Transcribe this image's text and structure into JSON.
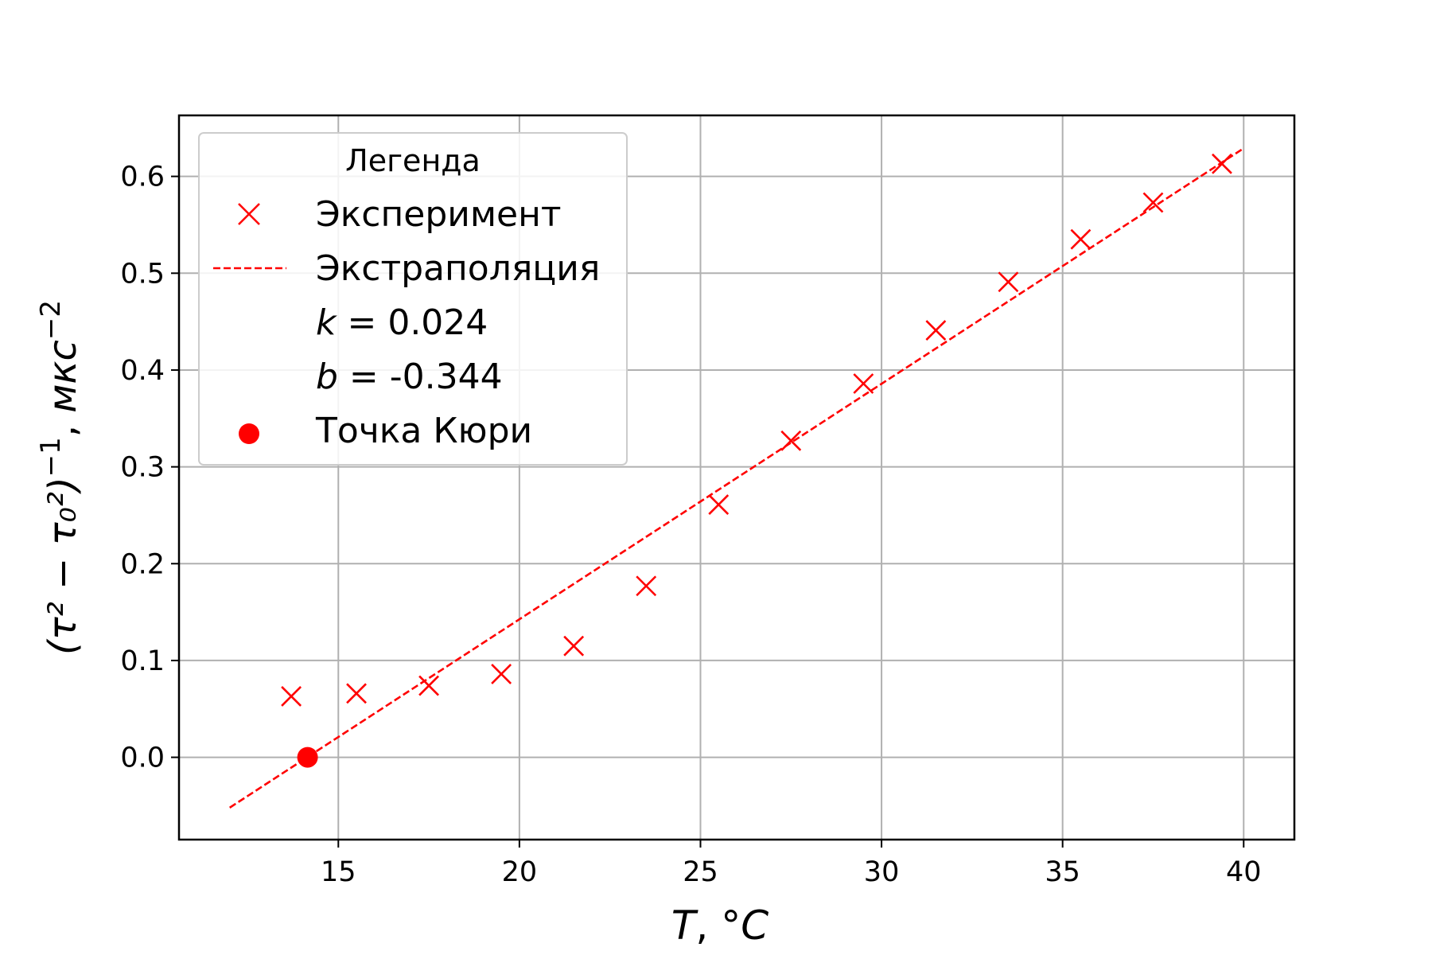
{
  "chart_data": {
    "type": "scatter",
    "xlabel": {
      "var": "T",
      "sep": ", ",
      "unit": "°C"
    },
    "ylabel": {
      "main": "(τ² − τ₀²)",
      "exp": "−1",
      "sep": ", ",
      "unit": "мкс",
      "unit_exp": "−2"
    },
    "xlim": [
      10.6,
      41.4
    ],
    "ylim": [
      -0.085,
      0.663
    ],
    "xticks": [
      15,
      20,
      25,
      30,
      35,
      40
    ],
    "xtick_labels": [
      "15",
      "20",
      "25",
      "30",
      "35",
      "40"
    ],
    "yticks": [
      0.0,
      0.1,
      0.2,
      0.3,
      0.4,
      0.5,
      0.6
    ],
    "ytick_labels": [
      "0.0",
      "0.1",
      "0.2",
      "0.3",
      "0.4",
      "0.5",
      "0.6"
    ],
    "grid": true,
    "legend": {
      "title": "Легенда",
      "placement": "upper-left",
      "entries": [
        {
          "marker": "x",
          "label": "Эксперимент"
        },
        {
          "marker": "dashed-line",
          "label": "Экстраполяция"
        },
        {
          "marker": "none",
          "var": "k",
          "eq": " = ",
          "value": "0.024"
        },
        {
          "marker": "none",
          "var": "b",
          "eq": " = ",
          "value": "-0.344"
        },
        {
          "marker": "dot",
          "label": "Точка Кюри"
        }
      ]
    },
    "series": [
      {
        "name": "Эксперимент",
        "kind": "scatter-x",
        "color": "#ff0000",
        "x": [
          13.7,
          15.5,
          17.5,
          19.5,
          21.5,
          23.5,
          25.5,
          27.5,
          29.5,
          31.5,
          33.5,
          35.5,
          37.5,
          39.4
        ],
        "y": [
          0.063,
          0.066,
          0.074,
          0.086,
          0.115,
          0.177,
          0.261,
          0.327,
          0.386,
          0.441,
          0.491,
          0.535,
          0.573,
          0.613
        ]
      },
      {
        "name": "Экстраполяция",
        "kind": "dashed-line",
        "color": "#ff0000",
        "x": [
          12.0,
          40.0
        ],
        "y": [
          -0.052,
          0.629
        ]
      },
      {
        "name": "Точка Кюри",
        "kind": "dot",
        "color": "#ff0000",
        "x": [
          14.15
        ],
        "y": [
          0.0
        ]
      }
    ]
  }
}
